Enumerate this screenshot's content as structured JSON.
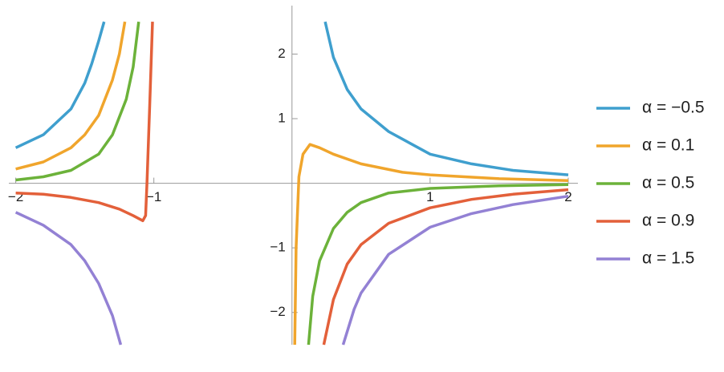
{
  "chart_data": {
    "type": "line",
    "xlim": [
      -2.05,
      2.07
    ],
    "ylim": [
      -2.5,
      2.75
    ],
    "xticks": [
      {
        "value": -2,
        "label": "−2"
      },
      {
        "value": -1,
        "label": "−1"
      },
      1,
      2
    ],
    "yticks": [
      {
        "value": -2,
        "label": "−2"
      },
      {
        "value": -1,
        "label": "−1"
      },
      1,
      2
    ],
    "series": [
      {
        "name": "α = −0.5",
        "color": "#3f9fce",
        "x": [
          -2,
          -1.8,
          -1.6,
          -1.5,
          -1.45,
          -1.4,
          -1.36,
          null,
          0.24,
          0.3,
          0.4,
          0.5,
          0.7,
          1,
          1.3,
          1.6,
          2
        ],
        "values": [
          0.55,
          0.75,
          1.15,
          1.55,
          1.85,
          2.2,
          2.5,
          null,
          2.5,
          1.95,
          1.45,
          1.15,
          0.8,
          0.45,
          0.3,
          0.2,
          0.13
        ]
      },
      {
        "name": "α = 0.1",
        "color": "#f0a52c",
        "x": [
          -2,
          -1.8,
          -1.6,
          -1.5,
          -1.4,
          -1.3,
          -1.25,
          -1.21,
          null,
          0.02,
          0.03,
          0.05,
          0.08,
          0.13,
          0.2,
          0.3,
          0.5,
          0.8,
          1,
          1.5,
          2
        ],
        "values": [
          0.22,
          0.33,
          0.55,
          0.75,
          1.05,
          1.6,
          2.0,
          2.5,
          null,
          -2.5,
          -1,
          0.1,
          0.45,
          0.6,
          0.55,
          0.45,
          0.3,
          0.17,
          0.13,
          0.07,
          0.04
        ]
      },
      {
        "name": "α = 0.5",
        "color": "#6cb23a",
        "x": [
          -2,
          -1.8,
          -1.6,
          -1.4,
          -1.3,
          -1.2,
          -1.15,
          -1.11,
          null,
          0.12,
          0.15,
          0.2,
          0.3,
          0.4,
          0.5,
          0.7,
          1,
          1.5,
          2
        ],
        "values": [
          0.05,
          0.1,
          0.2,
          0.45,
          0.75,
          1.3,
          1.8,
          2.5,
          null,
          -2.5,
          -1.75,
          -1.2,
          -0.7,
          -0.45,
          -0.3,
          -0.15,
          -0.08,
          -0.04,
          -0.02
        ]
      },
      {
        "name": "α = 0.9",
        "color": "#e3603a",
        "x": [
          -2,
          -1.8,
          -1.6,
          -1.4,
          -1.25,
          -1.15,
          -1.08,
          -1.06,
          -1.05,
          -1.03,
          -1.01,
          null,
          0.23,
          0.3,
          0.4,
          0.5,
          0.7,
          1,
          1.3,
          1.6,
          2
        ],
        "values": [
          -0.15,
          -0.17,
          -0.22,
          -0.3,
          -0.4,
          -0.5,
          -0.58,
          -0.5,
          0,
          1.2,
          2.5,
          null,
          -2.5,
          -1.8,
          -1.25,
          -0.95,
          -0.62,
          -0.38,
          -0.25,
          -0.17,
          -0.1
        ]
      },
      {
        "name": "α = 1.5",
        "color": "#9381d4",
        "x": [
          -2,
          -1.8,
          -1.6,
          -1.5,
          -1.4,
          -1.3,
          -1.24,
          null,
          0.37,
          0.45,
          0.5,
          0.7,
          1,
          1.3,
          1.6,
          2
        ],
        "values": [
          -0.45,
          -0.65,
          -0.95,
          -1.2,
          -1.55,
          -2.05,
          -2.5,
          null,
          -2.5,
          -1.95,
          -1.7,
          -1.1,
          -0.68,
          -0.47,
          -0.33,
          -0.2
        ]
      }
    ]
  }
}
